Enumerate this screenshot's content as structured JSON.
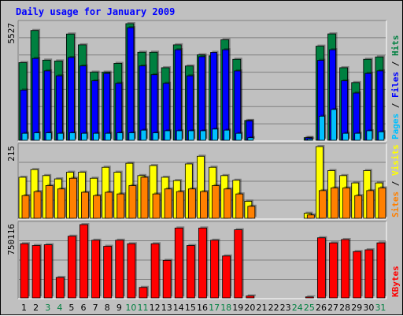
{
  "chart_data": {
    "type": "bar",
    "title": "Daily usage for January 2009",
    "categories": [
      "1",
      "2",
      "3",
      "4",
      "5",
      "6",
      "7",
      "8",
      "9",
      "10",
      "11",
      "12",
      "13",
      "14",
      "15",
      "16",
      "17",
      "18",
      "19",
      "20",
      "21",
      "22",
      "23",
      "24",
      "25",
      "26",
      "27",
      "28",
      "29",
      "30",
      "31"
    ],
    "weekend_days": [
      "3",
      "4",
      "10",
      "11",
      "17",
      "18",
      "24",
      "25",
      "31"
    ],
    "colors": {
      "hits": "#008040",
      "files": "#0000ff",
      "pages": "#00c0ff",
      "visits": "#ffff00",
      "sites": "#ff8000",
      "kbytes": "#ff0000",
      "weekday_label": "#000000",
      "weekend_label": "#008040",
      "panel_bg": "#c0c0c0",
      "title": "#0000ff"
    },
    "panels": [
      {
        "id": "hits",
        "max_label": "5527",
        "ymax": 5527,
        "legend": [
          {
            "text": "Pages",
            "color": "#00c0ff"
          },
          {
            "text": " / ",
            "color": "#000000"
          },
          {
            "text": "Files",
            "color": "#0000ff"
          },
          {
            "text": " / ",
            "color": "#000000"
          },
          {
            "text": "Hits",
            "color": "#008040"
          }
        ],
        "series": [
          {
            "name": "Hits",
            "color": "#008040",
            "values": [
              3680,
              5202,
              3798,
              3758,
              5035,
              4522,
              3228,
              3228,
              3643,
              5527,
              4172,
              4172,
              3438,
              4522,
              3520,
              4050,
              4000,
              4762,
              3838,
              940,
              0,
              0,
              0,
              0,
              124,
              4460,
              5040,
              3438,
              2733,
              3838,
              3950
            ]
          },
          {
            "name": "Files",
            "color": "#0000ff",
            "values": [
              2380,
              3878,
              3290,
              3055,
              3923,
              3523,
              2818,
              3170,
              2700,
              5337,
              3523,
              3110,
              2700,
              4290,
              3055,
              3960,
              4166,
              4290,
              3288,
              918,
              0,
              0,
              0,
              0,
              124,
              3788,
              4290,
              2818,
              2240,
              3170,
              3290
            ]
          },
          {
            "name": "Pages",
            "color": "#00c0ff",
            "values": [
              330,
              353,
              353,
              330,
              353,
              330,
              330,
              330,
              353,
              353,
              480,
              353,
              450,
              450,
              450,
              450,
              530,
              480,
              330,
              120,
              0,
              0,
              0,
              0,
              60,
              1140,
              1460,
              330,
              330,
              450,
              400
            ]
          }
        ]
      },
      {
        "id": "visits",
        "max_label": "215",
        "ymax": 215,
        "legend": [
          {
            "text": "Sites",
            "color": "#ff8000"
          },
          {
            "text": " / ",
            "color": "#000000"
          },
          {
            "text": "Visits",
            "color": "#ffff00"
          }
        ],
        "series": [
          {
            "name": "Visits",
            "color": "#ffff00",
            "values": [
              123,
              146,
              128,
              118,
              138,
              138,
              120,
              153,
              138,
              165,
              128,
              158,
              123,
              113,
              163,
              186,
              153,
              128,
              114,
              51,
              0,
              0,
              0,
              0,
              15,
              215,
              143,
              128,
              106,
              143,
              106
            ]
          },
          {
            "name": "Sites",
            "color": "#ff8000",
            "values": [
              68,
              80,
              98,
              88,
              120,
              78,
              68,
              78,
              73,
              98,
              123,
              73,
              88,
              80,
              88,
              80,
              98,
              88,
              73,
              36,
              0,
              0,
              0,
              0,
              10,
              83,
              91,
              91,
              68,
              83,
              91
            ]
          }
        ]
      },
      {
        "id": "kbytes",
        "max_label": "750116",
        "ymax": 750116,
        "legend": [
          {
            "text": "KBytes",
            "color": "#ff0000"
          }
        ],
        "series": [
          {
            "name": "KBytes",
            "color": "#ff0000",
            "values": [
              554000,
              536000,
              544000,
              209000,
              631000,
              750116,
              590000,
              528000,
              590000,
              554000,
              107000,
              554000,
              384000,
              715000,
              536000,
              715000,
              590000,
              429000,
              697000,
              20000,
              0,
              0,
              0,
              0,
              10000,
              615000,
              563000,
              597000,
              474000,
              492000,
              563000
            ]
          }
        ]
      }
    ]
  }
}
